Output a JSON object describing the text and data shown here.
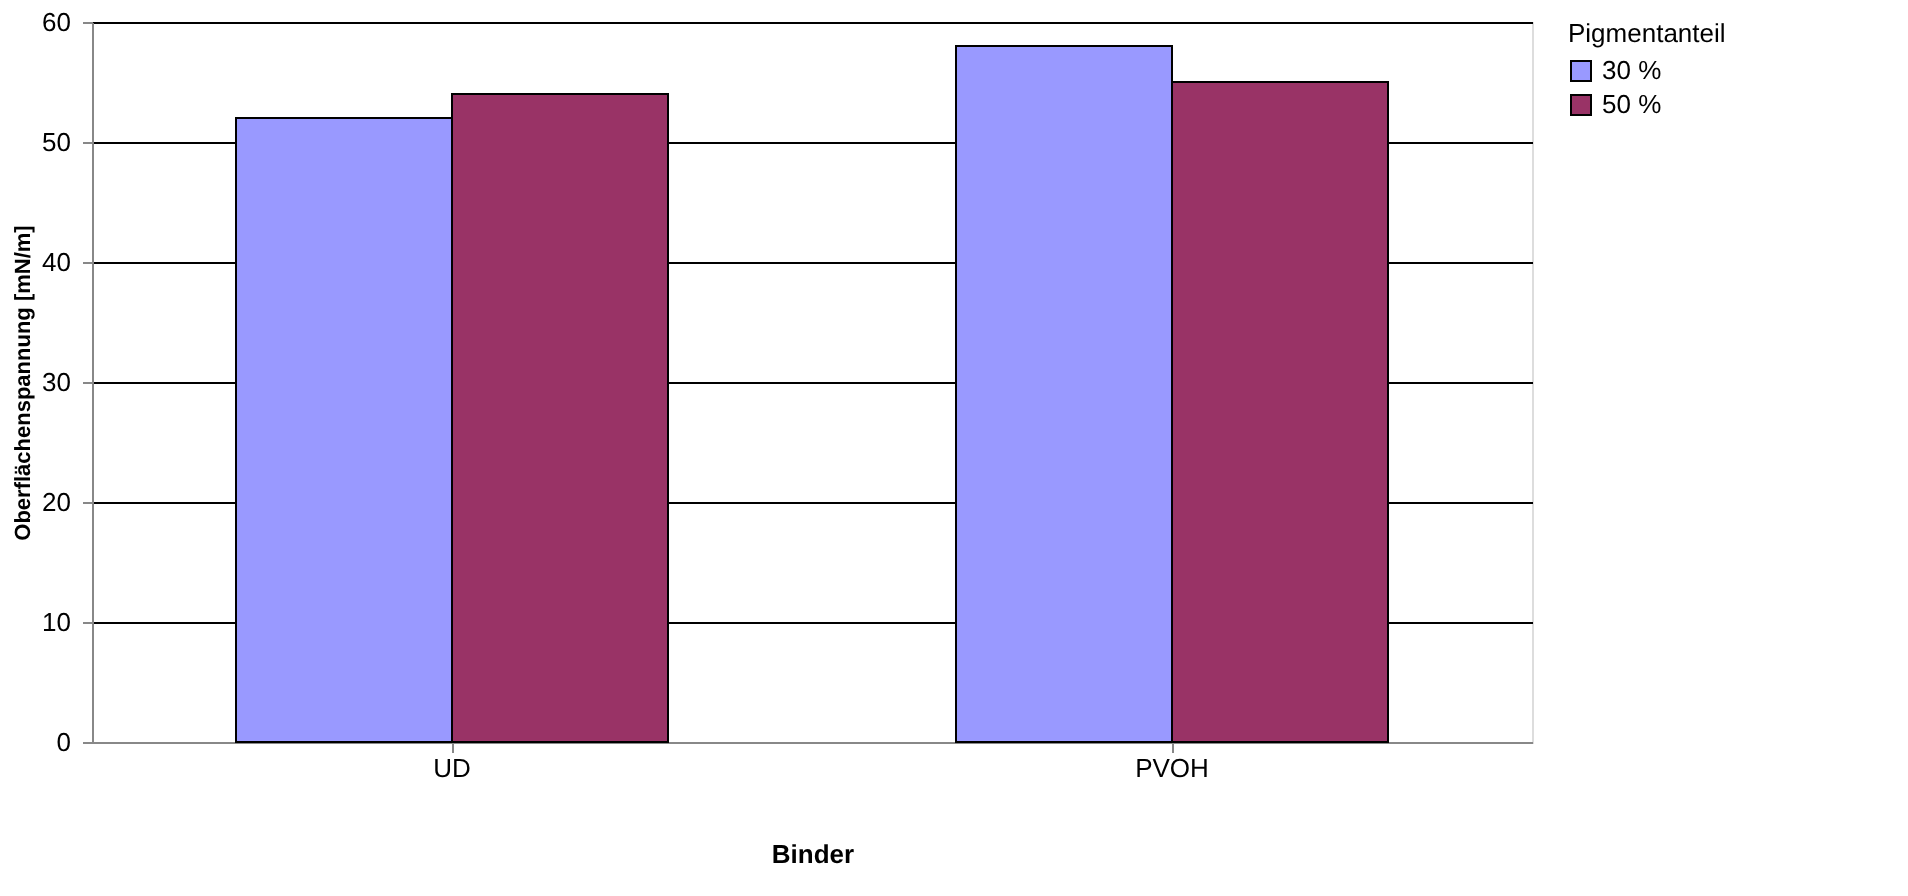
{
  "chart_data": {
    "type": "bar",
    "xlabel": "Binder",
    "ylabel": "Oberflächenspannung [mN/m]",
    "legend_title": "Pigmentanteil",
    "categories": [
      "UD",
      "PVOH"
    ],
    "series": [
      {
        "name": "30 %",
        "color": "#9999ff",
        "values": [
          52,
          58
        ]
      },
      {
        "name": "50 %",
        "color": "#993366",
        "values": [
          54,
          55
        ]
      }
    ],
    "ylim": [
      0,
      60
    ],
    "yticks": [
      0,
      10,
      20,
      30,
      40,
      50,
      60
    ],
    "grid": "y",
    "legend": "right"
  }
}
